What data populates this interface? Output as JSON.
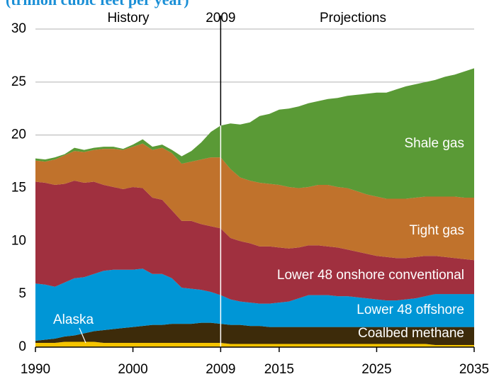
{
  "chart_data": {
    "type": "stacked_area",
    "subtitle": "(trillion cubic feet per year)",
    "annotations": [
      "History",
      "2009",
      "Projections"
    ],
    "x": [
      1990,
      1991,
      1992,
      1993,
      1994,
      1995,
      1996,
      1997,
      1998,
      1999,
      2000,
      2001,
      2002,
      2003,
      2004,
      2005,
      2006,
      2007,
      2008,
      2009,
      2010,
      2011,
      2012,
      2013,
      2014,
      2015,
      2016,
      2017,
      2018,
      2019,
      2020,
      2021,
      2022,
      2023,
      2024,
      2025,
      2026,
      2027,
      2028,
      2029,
      2030,
      2031,
      2032,
      2033,
      2034,
      2035
    ],
    "xlim": [
      1990,
      2035
    ],
    "xticks": [
      1990,
      2000,
      2009,
      2015,
      2025,
      2035
    ],
    "ylim": [
      0,
      30
    ],
    "yticks": [
      0,
      5,
      10,
      15,
      20,
      25,
      30
    ],
    "grid": true,
    "series": [
      {
        "name": "Alaska",
        "color": "#f5c400",
        "values": [
          0.4,
          0.4,
          0.4,
          0.5,
          0.5,
          0.5,
          0.5,
          0.4,
          0.4,
          0.4,
          0.4,
          0.4,
          0.4,
          0.4,
          0.4,
          0.4,
          0.4,
          0.4,
          0.4,
          0.4,
          0.3,
          0.3,
          0.3,
          0.3,
          0.3,
          0.3,
          0.3,
          0.3,
          0.3,
          0.3,
          0.3,
          0.3,
          0.3,
          0.3,
          0.3,
          0.3,
          0.3,
          0.3,
          0.3,
          0.3,
          0.3,
          0.2,
          0.2,
          0.2,
          0.2,
          0.2
        ]
      },
      {
        "name": "Coalbed methane",
        "color": "#3d2b0a",
        "values": [
          0.2,
          0.3,
          0.4,
          0.5,
          0.6,
          0.8,
          1.0,
          1.2,
          1.3,
          1.4,
          1.5,
          1.6,
          1.7,
          1.7,
          1.8,
          1.8,
          1.8,
          1.9,
          1.9,
          1.8,
          1.8,
          1.8,
          1.7,
          1.7,
          1.6,
          1.6,
          1.6,
          1.6,
          1.6,
          1.6,
          1.6,
          1.6,
          1.6,
          1.6,
          1.6,
          1.6,
          1.6,
          1.6,
          1.6,
          1.6,
          1.6,
          1.7,
          1.7,
          1.7,
          1.7,
          1.7
        ]
      },
      {
        "name": "Lower 48 offshore",
        "color": "#0096d6",
        "values": [
          5.4,
          5.2,
          4.9,
          5.1,
          5.4,
          5.3,
          5.4,
          5.6,
          5.6,
          5.5,
          5.4,
          5.4,
          4.8,
          4.8,
          4.3,
          3.4,
          3.3,
          3.1,
          2.9,
          2.7,
          2.4,
          2.2,
          2.2,
          2.1,
          2.2,
          2.3,
          2.4,
          2.7,
          3.0,
          3.0,
          3.0,
          2.9,
          2.9,
          2.8,
          2.7,
          2.6,
          2.5,
          2.5,
          2.6,
          2.7,
          2.9,
          3.1,
          3.1,
          3.1,
          3.1,
          3.1
        ]
      },
      {
        "name": "Lower 48 onshore conventional",
        "color": "#a0303f",
        "values": [
          9.6,
          9.6,
          9.6,
          9.3,
          9.2,
          8.9,
          8.7,
          8.1,
          7.8,
          7.6,
          7.8,
          7.6,
          7.2,
          7.0,
          6.4,
          6.3,
          6.4,
          6.2,
          6.2,
          6.3,
          5.8,
          5.7,
          5.6,
          5.4,
          5.4,
          5.2,
          5.0,
          4.8,
          4.7,
          4.7,
          4.6,
          4.6,
          4.4,
          4.3,
          4.2,
          4.1,
          4.1,
          4.0,
          3.9,
          3.9,
          3.8,
          3.6,
          3.5,
          3.4,
          3.3,
          3.2
        ]
      },
      {
        "name": "Tight gas",
        "color": "#c0722c",
        "values": [
          2.0,
          2.0,
          2.4,
          2.7,
          2.8,
          2.9,
          3.0,
          3.4,
          3.6,
          3.7,
          3.8,
          4.2,
          4.5,
          4.9,
          5.4,
          5.4,
          5.6,
          6.1,
          6.5,
          6.7,
          6.5,
          6.0,
          5.9,
          6.0,
          5.9,
          5.9,
          5.8,
          5.6,
          5.5,
          5.7,
          5.8,
          5.7,
          5.8,
          5.7,
          5.6,
          5.6,
          5.5,
          5.6,
          5.6,
          5.6,
          5.6,
          5.6,
          5.7,
          5.8,
          5.8,
          5.9
        ]
      },
      {
        "name": "Shale gas",
        "color": "#5a9a36",
        "values": [
          0.2,
          0.2,
          0.2,
          0.1,
          0.3,
          0.2,
          0.2,
          0.2,
          0.2,
          0.1,
          0.2,
          0.4,
          0.3,
          0.3,
          0.3,
          0.7,
          1.0,
          1.6,
          2.4,
          3.0,
          4.3,
          5.0,
          5.5,
          6.3,
          6.6,
          7.1,
          7.4,
          7.7,
          7.9,
          7.9,
          8.1,
          8.4,
          8.7,
          9.1,
          9.5,
          9.8,
          10.0,
          10.3,
          10.6,
          10.7,
          10.8,
          11.0,
          11.3,
          11.5,
          11.9,
          12.2
        ]
      }
    ]
  }
}
